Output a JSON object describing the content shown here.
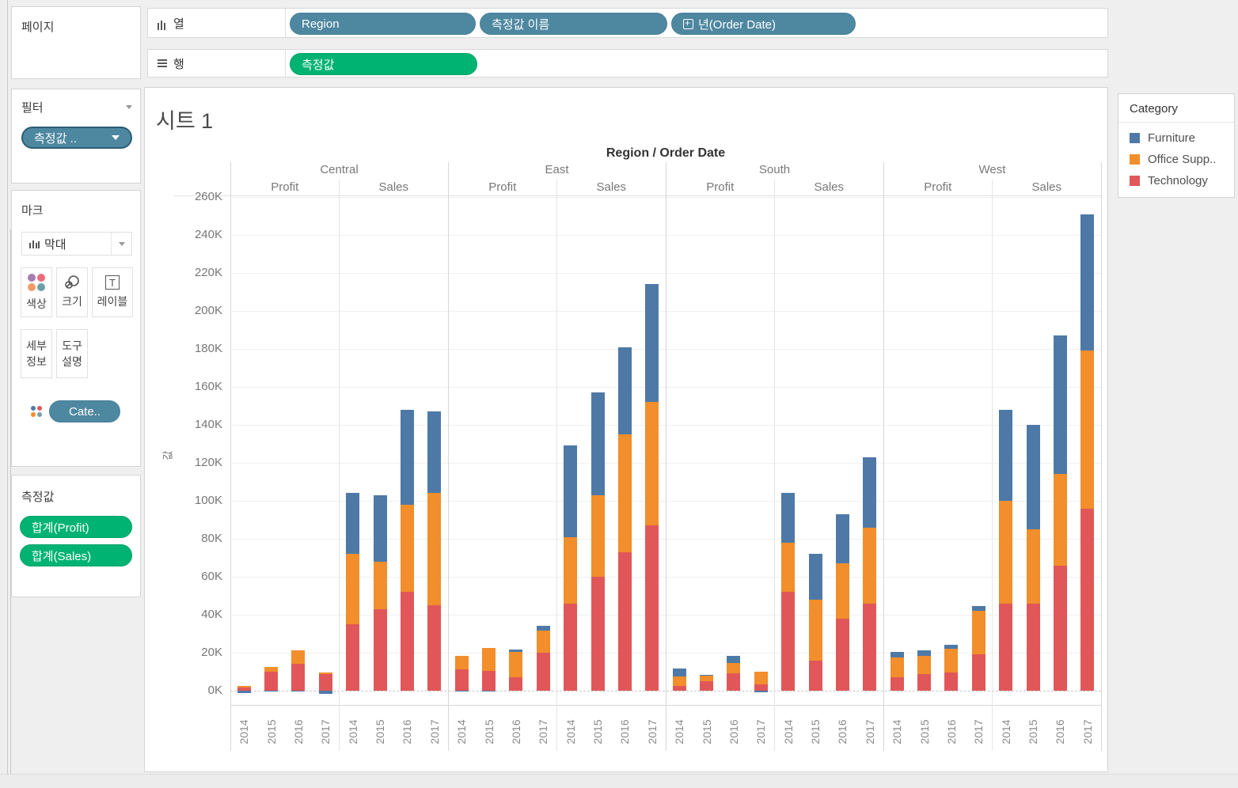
{
  "shelves": {
    "pages_label": "페이지",
    "columns_label": "열",
    "rows_label": "행",
    "columns_pills": [
      {
        "label": "Region"
      },
      {
        "label": "측정값 이름"
      },
      {
        "label": "년(Order Date)",
        "icon": "plus-box-icon"
      }
    ],
    "rows_pills": [
      {
        "label": "측정값"
      }
    ]
  },
  "filters": {
    "title": "필터",
    "pill_label": "측정값 ..",
    "pill_icon": "caret-down-icon"
  },
  "marks": {
    "title": "마크",
    "mark_type_label": "막대",
    "mark_type_icon": "bar-chart-icon",
    "buttons": [
      {
        "label": "색상",
        "icon": "color-dots-icon"
      },
      {
        "label": "크기",
        "icon": "size-circles-icon"
      },
      {
        "label": "레이블",
        "icon": "text-label-icon"
      },
      {
        "label": "세부정보"
      },
      {
        "label": "도구설명"
      }
    ],
    "legend_pill_label": "Cate.."
  },
  "measure_values_panel": {
    "title": "측정값",
    "pills": [
      {
        "label": "합계(Profit)"
      },
      {
        "label": "합계(Sales)"
      }
    ]
  },
  "sheet": {
    "title": "시트 1"
  },
  "legend": {
    "title": "Category",
    "items": [
      {
        "label": "Furniture",
        "color": "#4e79a7"
      },
      {
        "label": "Office Supp..",
        "color": "#f28e2b"
      },
      {
        "label": "Technology",
        "color": "#e15759"
      }
    ]
  },
  "colors": {
    "pill_blue": "#4e87a0",
    "pill_green": "#00b373",
    "bar_blue": "#4e79a7",
    "bar_orange": "#f28e2b",
    "bar_red": "#e15759"
  },
  "chart_data": {
    "type": "bar",
    "stacked": true,
    "title": "Region / Order Date",
    "ylabel": "값",
    "ylim": [
      0,
      260000
    ],
    "ytick_step_k": 20,
    "ytick_count": 14,
    "grid": true,
    "legend_position": "right",
    "regions": [
      "Central",
      "East",
      "South",
      "West"
    ],
    "measures": [
      "Profit",
      "Sales"
    ],
    "years": [
      "2014",
      "2015",
      "2016",
      "2017"
    ],
    "series_order": [
      "Technology",
      "Office Supplies",
      "Furniture"
    ],
    "series_colors": {
      "Technology": "#e15759",
      "Office Supplies": "#f28e2b",
      "Furniture": "#4e79a7"
    },
    "panels": [
      {
        "region": "Central",
        "measure": "Profit",
        "values_k": {
          "Technology": [
            1.7,
            10.0,
            14.3,
            8.8
          ],
          "Office Supplies": [
            0.6,
            2.3,
            6.9,
            0.9
          ],
          "Furniture": [
            -1.4,
            -0.4,
            -0.3,
            -1.5
          ]
        }
      },
      {
        "region": "Central",
        "measure": "Sales",
        "values_k": {
          "Technology": [
            35,
            43,
            52,
            45
          ],
          "Office Supplies": [
            37,
            25,
            46,
            59
          ],
          "Furniture": [
            32,
            35,
            50,
            43
          ]
        }
      },
      {
        "region": "East",
        "measure": "Profit",
        "values_k": {
          "Technology": [
            11.2,
            10.3,
            7.1,
            19.9
          ],
          "Office Supplies": [
            7.0,
            12.0,
            13.5,
            11.7
          ],
          "Furniture": [
            -0.3,
            -0.4,
            1.0,
            2.4
          ]
        }
      },
      {
        "region": "East",
        "measure": "Sales",
        "values_k": {
          "Technology": [
            46,
            60,
            73,
            87
          ],
          "Office Supplies": [
            35,
            43,
            62,
            65
          ],
          "Furniture": [
            48,
            54,
            46,
            62
          ]
        }
      },
      {
        "region": "South",
        "measure": "Profit",
        "values_k": {
          "Technology": [
            2.5,
            4.8,
            9.3,
            3.5
          ],
          "Office Supplies": [
            5.2,
            3.0,
            5.4,
            6.4
          ],
          "Furniture": [
            3.8,
            0.7,
            3.5,
            -0.7
          ]
        }
      },
      {
        "region": "South",
        "measure": "Sales",
        "values_k": {
          "Technology": [
            52,
            16,
            38,
            46
          ],
          "Office Supplies": [
            26,
            32,
            29,
            40
          ],
          "Furniture": [
            26,
            24,
            26,
            37
          ]
        }
      },
      {
        "region": "West",
        "measure": "Profit",
        "values_k": {
          "Technology": [
            7.2,
            8.9,
            9.6,
            19.2
          ],
          "Office Supplies": [
            10.5,
            9.3,
            12.3,
            22.8
          ],
          "Furniture": [
            2.7,
            3.0,
            2.4,
            2.7
          ]
        }
      },
      {
        "region": "West",
        "measure": "Sales",
        "values_k": {
          "Technology": [
            46,
            46,
            66,
            96
          ],
          "Office Supplies": [
            54,
            39,
            48,
            83
          ],
          "Furniture": [
            48,
            55,
            73,
            72
          ]
        }
      }
    ]
  }
}
